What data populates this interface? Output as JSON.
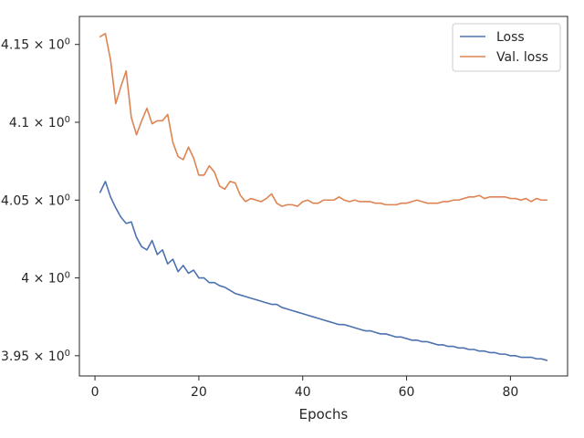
{
  "chart_data": {
    "type": "line",
    "title": "",
    "xlabel": "Epochs",
    "ylabel": "",
    "xlim": [
      -3,
      91
    ],
    "ylim": [
      3.937,
      4.168
    ],
    "grid": false,
    "legend_position": "top-right",
    "x_ticks": [
      {
        "value": 0,
        "label": "0"
      },
      {
        "value": 20,
        "label": "20"
      },
      {
        "value": 40,
        "label": "40"
      },
      {
        "value": 60,
        "label": "60"
      },
      {
        "value": 80,
        "label": "80"
      }
    ],
    "y_ticks": [
      {
        "value": 3.95,
        "mant": "3.95",
        "exp": "0"
      },
      {
        "value": 4.0,
        "mant": "4",
        "exp": "0"
      },
      {
        "value": 4.05,
        "mant": "4.05",
        "exp": "0"
      },
      {
        "value": 4.1,
        "mant": "4.1",
        "exp": "0"
      },
      {
        "value": 4.15,
        "mant": "4.15",
        "exp": "0"
      }
    ],
    "series": [
      {
        "name": "Loss",
        "color": "#4c72b0",
        "x": [
          1,
          2,
          3,
          4,
          5,
          6,
          7,
          8,
          9,
          10,
          11,
          12,
          13,
          14,
          15,
          16,
          17,
          18,
          19,
          20,
          21,
          22,
          23,
          24,
          25,
          26,
          27,
          28,
          29,
          30,
          31,
          32,
          33,
          34,
          35,
          36,
          37,
          38,
          39,
          40,
          41,
          42,
          43,
          44,
          45,
          46,
          47,
          48,
          49,
          50,
          51,
          52,
          53,
          54,
          55,
          56,
          57,
          58,
          59,
          60,
          61,
          62,
          63,
          64,
          65,
          66,
          67,
          68,
          69,
          70,
          71,
          72,
          73,
          74,
          75,
          76,
          77,
          78,
          79,
          80,
          81,
          82,
          83,
          84,
          85,
          86,
          87
        ],
        "values": [
          4.055,
          4.062,
          4.052,
          4.045,
          4.039,
          4.035,
          4.036,
          4.026,
          4.02,
          4.018,
          4.024,
          4.015,
          4.018,
          4.009,
          4.012,
          4.004,
          4.008,
          4.003,
          4.005,
          4.0,
          4.0,
          3.997,
          3.997,
          3.995,
          3.994,
          3.992,
          3.99,
          3.989,
          3.988,
          3.987,
          3.986,
          3.985,
          3.984,
          3.983,
          3.983,
          3.981,
          3.98,
          3.979,
          3.978,
          3.977,
          3.976,
          3.975,
          3.974,
          3.973,
          3.972,
          3.971,
          3.97,
          3.97,
          3.969,
          3.968,
          3.967,
          3.966,
          3.966,
          3.965,
          3.964,
          3.964,
          3.963,
          3.962,
          3.962,
          3.961,
          3.96,
          3.96,
          3.959,
          3.959,
          3.958,
          3.957,
          3.957,
          3.956,
          3.956,
          3.955,
          3.955,
          3.954,
          3.954,
          3.953,
          3.953,
          3.952,
          3.952,
          3.951,
          3.951,
          3.95,
          3.95,
          3.949,
          3.949,
          3.949,
          3.948,
          3.948,
          3.947
        ]
      },
      {
        "name": "Val. loss",
        "color": "#dd8452",
        "x": [
          1,
          2,
          3,
          4,
          5,
          6,
          7,
          8,
          9,
          10,
          11,
          12,
          13,
          14,
          15,
          16,
          17,
          18,
          19,
          20,
          21,
          22,
          23,
          24,
          25,
          26,
          27,
          28,
          29,
          30,
          31,
          32,
          33,
          34,
          35,
          36,
          37,
          38,
          39,
          40,
          41,
          42,
          43,
          44,
          45,
          46,
          47,
          48,
          49,
          50,
          51,
          52,
          53,
          54,
          55,
          56,
          57,
          58,
          59,
          60,
          61,
          62,
          63,
          64,
          65,
          66,
          67,
          68,
          69,
          70,
          71,
          72,
          73,
          74,
          75,
          76,
          77,
          78,
          79,
          80,
          81,
          82,
          83,
          84,
          85,
          86,
          87
        ],
        "values": [
          4.155,
          4.157,
          4.14,
          4.112,
          4.123,
          4.133,
          4.103,
          4.092,
          4.101,
          4.109,
          4.099,
          4.101,
          4.101,
          4.105,
          4.087,
          4.078,
          4.076,
          4.084,
          4.077,
          4.066,
          4.066,
          4.072,
          4.068,
          4.059,
          4.057,
          4.062,
          4.061,
          4.053,
          4.049,
          4.051,
          4.05,
          4.049,
          4.051,
          4.054,
          4.048,
          4.046,
          4.047,
          4.047,
          4.046,
          4.049,
          4.05,
          4.048,
          4.048,
          4.05,
          4.05,
          4.05,
          4.052,
          4.05,
          4.049,
          4.05,
          4.049,
          4.049,
          4.049,
          4.048,
          4.048,
          4.047,
          4.047,
          4.047,
          4.048,
          4.048,
          4.049,
          4.05,
          4.049,
          4.048,
          4.048,
          4.048,
          4.049,
          4.049,
          4.05,
          4.05,
          4.051,
          4.052,
          4.052,
          4.053,
          4.051,
          4.052,
          4.052,
          4.052,
          4.052,
          4.051,
          4.051,
          4.05,
          4.051,
          4.049,
          4.051,
          4.05,
          4.05
        ]
      }
    ]
  }
}
